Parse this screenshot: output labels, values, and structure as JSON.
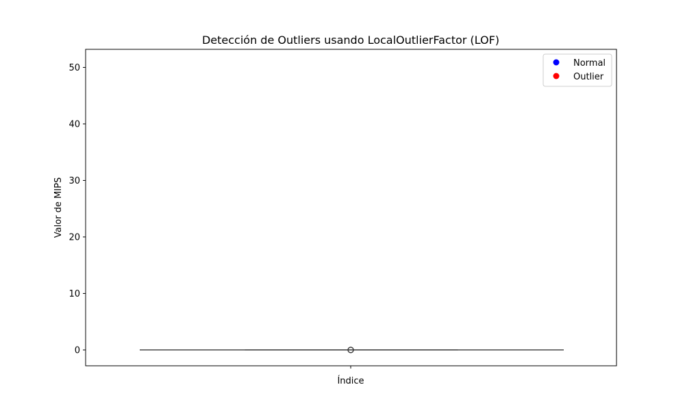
{
  "chart_data": {
    "type": "box",
    "title": "Detección de Outliers usando LocalOutlierFactor (LOF)",
    "xlabel": "Índice",
    "ylabel": "Valor de MIPS",
    "ylim": [
      -2.8,
      53.2
    ],
    "yticks": [
      0,
      10,
      20,
      30,
      40,
      50
    ],
    "grid": false,
    "legend_position": "top-right",
    "legend": [
      {
        "label": "Normal",
        "color": "#0000ff"
      },
      {
        "label": "Outlier",
        "color": "#ff0000"
      }
    ],
    "box": {
      "whisker_low": 0,
      "q1": 0,
      "median": 0,
      "q3": 0,
      "whisker_high": 0,
      "fliers": [
        0,
        0,
        0
      ],
      "color": "#3a3a3a"
    }
  }
}
